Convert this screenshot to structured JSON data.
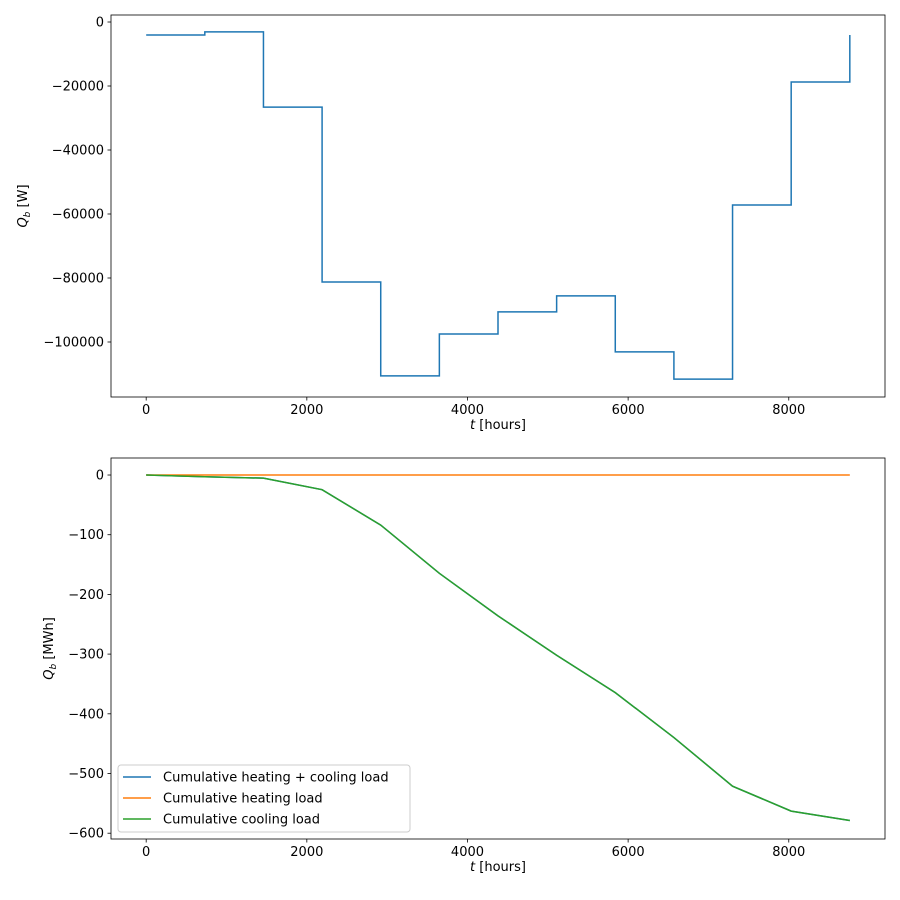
{
  "chart_data": [
    {
      "type": "line",
      "drawstyle": "steps-post",
      "xlabel_var": "t",
      "xlabel_unit": "[hours]",
      "ylabel_var": "Q",
      "ylabel_sub": "b",
      "ylabel_unit": "[W]",
      "xlim": [
        -438,
        9198
      ],
      "ylim": [
        -117190,
        2190
      ],
      "xticks": [
        0,
        2000,
        4000,
        6000,
        8000
      ],
      "xtick_labels": [
        "0",
        "2000",
        "4000",
        "6000",
        "8000"
      ],
      "yticks": [
        0,
        -20000,
        -40000,
        -60000,
        -80000,
        -100000
      ],
      "ytick_labels": [
        "0",
        "−20000",
        "−40000",
        "−60000",
        "−80000",
        "−100000"
      ],
      "grid": false,
      "series": [
        {
          "color": "#1f77b4",
          "x": [
            0,
            730,
            1460,
            2190,
            2920,
            3650,
            4380,
            5110,
            5840,
            6570,
            7300,
            8030,
            8760
          ],
          "y": [
            -4060,
            -3100,
            -26600,
            -81250,
            -110600,
            -97500,
            -90600,
            -85600,
            -103100,
            -111600,
            -57200,
            -18750,
            -4060
          ]
        }
      ]
    },
    {
      "type": "line",
      "xlabel_var": "t",
      "xlabel_unit": "[hours]",
      "ylabel_var": "Q",
      "ylabel_sub": "b",
      "ylabel_unit": "[MWh]",
      "xlim": [
        -438,
        9198
      ],
      "ylim": [
        -609.7,
        28.5
      ],
      "xticks": [
        0,
        2000,
        4000,
        6000,
        8000
      ],
      "xtick_labels": [
        "0",
        "2000",
        "4000",
        "6000",
        "8000"
      ],
      "yticks": [
        0,
        -100,
        -200,
        -300,
        -400,
        -500,
        -600
      ],
      "ytick_labels": [
        "0",
        "−100",
        "−200",
        "−300",
        "−400",
        "−500",
        "−600"
      ],
      "grid": false,
      "legend": "lower-left",
      "x": [
        0,
        730,
        1460,
        2190,
        2920,
        3650,
        4380,
        5110,
        5840,
        6570,
        7300,
        8030,
        8760
      ],
      "series": [
        {
          "name": "Cumulative heating + cooling load",
          "color": "#1f77b4",
          "values": [
            0,
            -2.96,
            -5.23,
            -24.6,
            -83.9,
            -164.7,
            -235.9,
            -302.0,
            -364.5,
            -439.8,
            -521.2,
            -563.0,
            -578.7
          ]
        },
        {
          "name": "Cumulative heating load",
          "color": "#ff7f0e",
          "values": [
            0,
            0,
            0,
            0,
            0,
            0,
            0,
            0,
            0,
            0,
            0,
            0,
            0
          ]
        },
        {
          "name": "Cumulative cooling load",
          "color": "#2ca02c",
          "values": [
            0,
            -2.96,
            -5.23,
            -24.6,
            -83.9,
            -164.7,
            -235.9,
            -302.0,
            -364.5,
            -439.8,
            -521.2,
            -563.0,
            -578.7
          ]
        }
      ]
    }
  ]
}
